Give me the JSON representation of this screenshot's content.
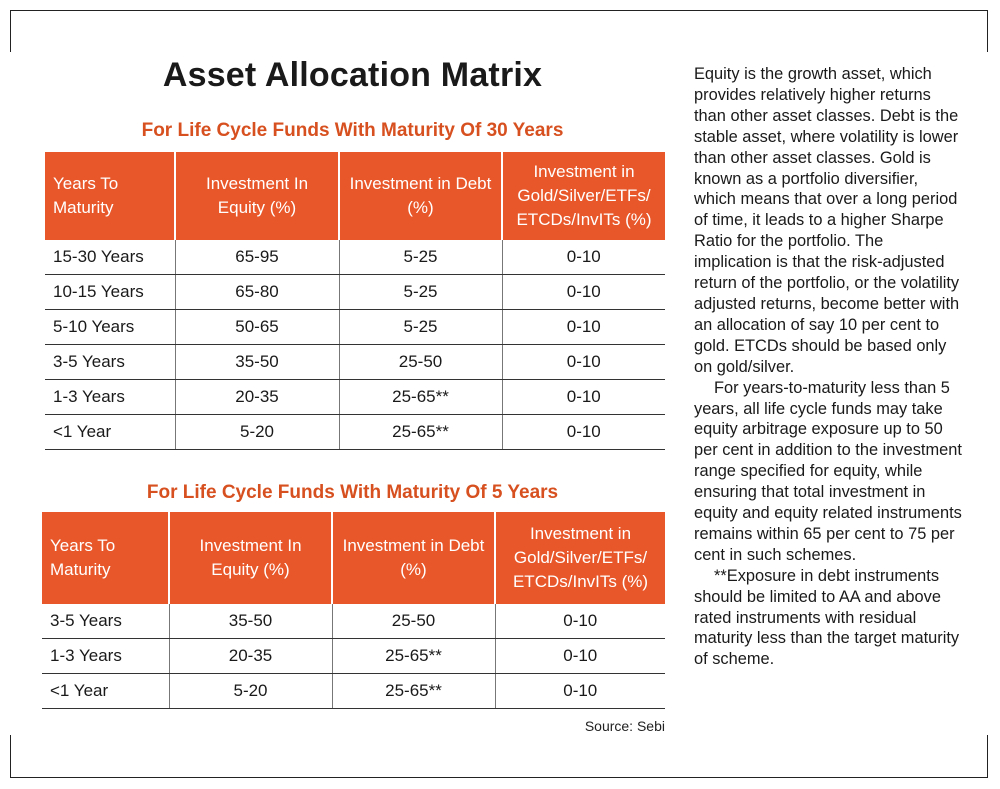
{
  "title": "Asset Allocation Matrix",
  "table1": {
    "title": "For Life Cycle Funds With Maturity Of 30 Years",
    "headers": [
      "Years To Maturity",
      "Investment In Equity (%)",
      "Investment in Debt (%)",
      "Investment in Gold/Silver/ETFs/ ETCDs/InvITs (%)"
    ],
    "rows": [
      [
        "15-30 Years",
        "65-95",
        "5-25",
        "0-10"
      ],
      [
        "10-15 Years",
        "65-80",
        "5-25",
        "0-10"
      ],
      [
        "5-10 Years",
        "50-65",
        "5-25",
        "0-10"
      ],
      [
        "3-5 Years",
        "35-50",
        "25-50",
        "0-10"
      ],
      [
        "1-3 Years",
        "20-35",
        "25-65**",
        "0-10"
      ],
      [
        "<1 Year",
        "5-20",
        "25-65**",
        "0-10"
      ]
    ]
  },
  "table2": {
    "title": "For Life Cycle Funds With Maturity Of 5 Years",
    "headers": [
      "Years To Maturity",
      "Investment In Equity (%)",
      "Investment in Debt (%)",
      "Investment in Gold/Silver/ETFs/ ETCDs/InvITs (%)"
    ],
    "rows": [
      [
        "3-5 Years",
        "35-50",
        "25-50",
        "0-10"
      ],
      [
        "1-3 Years",
        "20-35",
        "25-65**",
        "0-10"
      ],
      [
        "<1 Year",
        "5-20",
        "25-65**",
        "0-10"
      ]
    ]
  },
  "source": "Source: Sebi",
  "paragraphs": [
    "Equity is the growth asset, which provides relatively higher returns than other asset classes. Debt is the stable asset, where volatility is lower than other asset classes. Gold is known as a portfolio diversifier, which means that over a long period of time, it leads to a higher Sharpe Ratio for the portfolio. The implication is that the risk-adjusted return of the portfolio, or the volatility adjusted returns, become better with an allocation of say 10 per cent to gold. ETCDs should be based only on gold/silver.",
    "For years-to-maturity less than 5 years, all life cycle funds may take equity arbitrage exposure up to 50 per cent in addition to the investment range specified for equity, while ensuring that total investment in equity and equity related instruments remains within 65 per cent to 75 per cent in such schemes.",
    "**Exposure in debt instruments should be limited to AA and above rated instruments with residual maturity less than the target maturity of scheme."
  ],
  "colors": {
    "header_bg": "#e8572a",
    "section_title": "#d7501f"
  }
}
